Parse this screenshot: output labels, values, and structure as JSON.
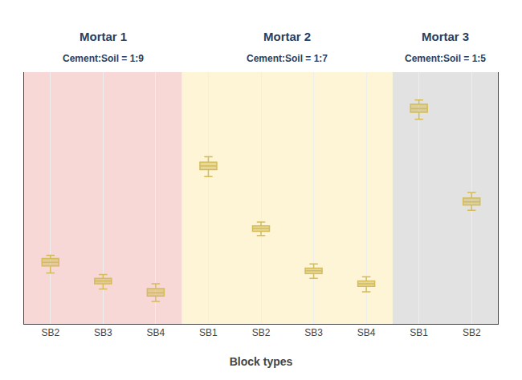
{
  "chart_data": {
    "type": "box",
    "xlabel": "Block types",
    "categories": [
      "SB2",
      "SB3",
      "SB4",
      "SB1",
      "SB2",
      "SB3",
      "SB4",
      "SB1",
      "SB2"
    ],
    "series": [
      {
        "color": "#d4bc5a",
        "lower_whisker": [
          2.75,
          2.45,
          2.22,
          4.55,
          3.45,
          2.65,
          2.4,
          5.62,
          3.92
        ],
        "q1": [
          2.88,
          2.55,
          2.32,
          4.68,
          3.53,
          2.74,
          2.5,
          5.75,
          4.02
        ],
        "median": [
          2.95,
          2.6,
          2.38,
          4.75,
          3.58,
          2.79,
          2.55,
          5.82,
          4.08
        ],
        "q3": [
          3.02,
          2.65,
          2.46,
          4.82,
          3.63,
          2.84,
          2.6,
          5.9,
          4.15
        ],
        "upper_whisker": [
          3.08,
          2.72,
          2.55,
          4.92,
          3.7,
          2.92,
          2.68,
          5.98,
          4.25
        ]
      }
    ],
    "groups": [
      {
        "name": "Mortar 1",
        "subtitle": "Cement:Soil = 1:9",
        "color": "#f8d7d7",
        "categories": [
          "SB2",
          "SB3",
          "SB4"
        ]
      },
      {
        "name": "Mortar 2",
        "subtitle": "Cement:Soil = 1:7",
        "color": "#fdf5d5",
        "categories": [
          "SB1",
          "SB2",
          "SB3",
          "SB4"
        ]
      },
      {
        "name": "Mortar 3",
        "subtitle": "Cement:Soil = 1:5",
        "color": "#e2e2e2",
        "categories": [
          "SB1",
          "SB2"
        ]
      }
    ],
    "ylim": [
      1.8,
      6.5
    ],
    "yticks": [],
    "grid": true,
    "tick_labels": "x"
  }
}
